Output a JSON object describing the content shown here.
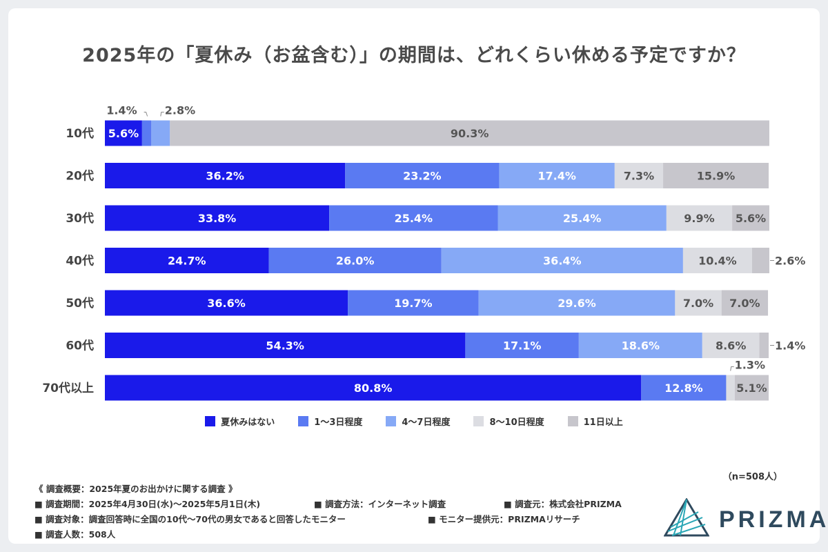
{
  "title": "2025年の「夏休み（お盆含む）」の期間は、どれくらい休める予定ですか？",
  "chart_data": {
    "type": "bar",
    "orientation": "horizontal",
    "stacked": true,
    "title": "2025年の「夏休み（お盆含む）」の期間は、どれくらい休める予定ですか？",
    "categories": [
      "10代",
      "20代",
      "30代",
      "40代",
      "50代",
      "60代",
      "70代以上"
    ],
    "series": [
      {
        "name": "夏休みはない",
        "color": "#1a1aea",
        "values": [
          5.6,
          36.2,
          33.8,
          24.7,
          36.6,
          54.3,
          80.8
        ]
      },
      {
        "name": "1〜3日程度",
        "color": "#5a7af2",
        "values": [
          1.4,
          23.2,
          25.4,
          26.0,
          19.7,
          17.1,
          12.8
        ]
      },
      {
        "name": "4〜7日程度",
        "color": "#86a9f6",
        "values": [
          2.8,
          17.4,
          25.4,
          36.4,
          29.6,
          18.6,
          0
        ]
      },
      {
        "name": "8〜10日程度",
        "color": "#dcdde2",
        "values": [
          0,
          7.3,
          9.9,
          10.4,
          7.0,
          8.6,
          1.3
        ]
      },
      {
        "name": "11日以上",
        "color": "#c7c6cc",
        "values": [
          90.3,
          15.9,
          5.6,
          2.6,
          7.0,
          1.4,
          5.1
        ]
      }
    ],
    "xlim": [
      0,
      100
    ],
    "grid": false,
    "legend": "bottom"
  },
  "sample_size": "（n=508人）",
  "notes": {
    "heading": "《 調査概要：2025年夏のお出かけに関する調査 》",
    "period": "■ 調査期間：2025年4月30日(水)〜2025年5月1日(木)",
    "method": "■ 調査方法：インターネット調査",
    "source": "■ 調査元：株式会社PRIZMA",
    "target": "■ 調査対象：調査回答時に全国の10代〜70代の男女であると回答したモニター",
    "provider": "■ モニター提供元：PRIZMAリサーチ",
    "count": "■ 調査人数：508人"
  },
  "logo": {
    "text": "PRIZMA",
    "color": "#2f4a5e",
    "accent": "#2aa6b5"
  }
}
